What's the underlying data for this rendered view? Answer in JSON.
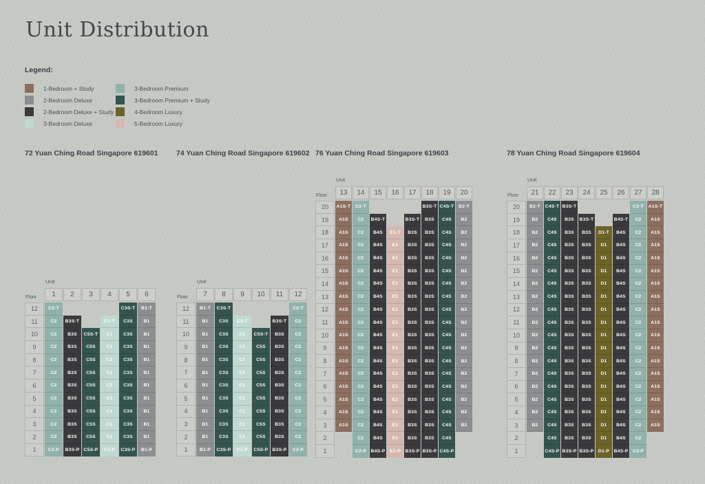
{
  "title": "Unit Distribution",
  "labels": {
    "unit": "Unit",
    "floor": "Floor"
  },
  "legend": {
    "title": "Legend:",
    "items": [
      {
        "label": "1-Bedroom + Study",
        "color": "#8c6f5e"
      },
      {
        "label": "2-Bedroom Deluxe",
        "color": "#8d8e90"
      },
      {
        "label": "2-Bedroom Deluxe + Study",
        "color": "#3a3a3c"
      },
      {
        "label": "3-Bedroom Deluxe",
        "color": "#c0d9d1"
      },
      {
        "label": "3-Bedroom Premium",
        "color": "#90b2aa"
      },
      {
        "label": "3-Bedroom Premium + Study",
        "color": "#34544d"
      },
      {
        "label": "4-Bedroom Luxury",
        "color": "#6b6327"
      },
      {
        "label": "5-Bedroom Luxury",
        "color": "#d5b8b2"
      }
    ]
  },
  "unit_type_colors": {
    "A1S": "#8c6f5e",
    "B1": "#8d8e90",
    "B2": "#8d8e90",
    "B3S": "#3a3a3c",
    "B4S": "#3a3a3c",
    "C1": "#c0d9d1",
    "C2": "#90b2aa",
    "C3S": "#34544d",
    "C4S": "#34544d",
    "C5S": "#34544d",
    "D1": "#6b6327",
    "E1": "#d5b8b2"
  },
  "unit_types": {
    "A1S": "1-Bedroom + Study",
    "B1": "2-Bedroom Deluxe",
    "B2": "2-Bedroom Deluxe",
    "B3S": "2-Bedroom Deluxe + Study",
    "B4S": "2-Bedroom Deluxe + Study",
    "C1": "3-Bedroom Deluxe",
    "C2": "3-Bedroom Premium",
    "C3S": "3-Bedroom Premium + Study",
    "C4S": "3-Bedroom Premium + Study",
    "C5S": "3-Bedroom Premium + Study",
    "D1": "4-Bedroom Luxury",
    "E1": "5-Bedroom Luxury"
  },
  "chart_data": {
    "type": "table",
    "title": "Unit Distribution",
    "buildings": [
      {
        "title": "72 Yuan Ching Road Singapore 619601",
        "units": [
          "1",
          "2",
          "3",
          "4",
          "5",
          "6"
        ],
        "floors": [
          {
            "floor": "12",
            "cells": [
              "C2-T",
              "",
              "",
              "",
              "C3S-T",
              "B1-T"
            ]
          },
          {
            "floor": "11",
            "cells": [
              "C2",
              "B3S-T",
              "",
              "C1-T",
              "C3S",
              "B1"
            ]
          },
          {
            "floor": "10",
            "cells": [
              "C2",
              "B3S",
              "C5S-T",
              "C1",
              "C3S",
              "B1"
            ]
          },
          {
            "floor": "9",
            "cells": [
              "C2",
              "B3S",
              "C5S",
              "C1",
              "C3S",
              "B1"
            ]
          },
          {
            "floor": "8",
            "cells": [
              "C2",
              "B3S",
              "C5S",
              "C1",
              "C3S",
              "B1"
            ]
          },
          {
            "floor": "7",
            "cells": [
              "C2",
              "B3S",
              "C5S",
              "C1",
              "C3S",
              "B1"
            ]
          },
          {
            "floor": "6",
            "cells": [
              "C2",
              "B3S",
              "C5S",
              "C1",
              "C3S",
              "B1"
            ]
          },
          {
            "floor": "5",
            "cells": [
              "C2",
              "B3S",
              "C5S",
              "C1",
              "C3S",
              "B1"
            ]
          },
          {
            "floor": "4",
            "cells": [
              "C2",
              "B3S",
              "C5S",
              "C1",
              "C3S",
              "B1"
            ]
          },
          {
            "floor": "3",
            "cells": [
              "C2",
              "B3S",
              "C5S",
              "C1",
              "C3S",
              "B1"
            ]
          },
          {
            "floor": "2",
            "cells": [
              "C2",
              "B3S",
              "C5S",
              "C1",
              "C3S",
              "B1"
            ]
          },
          {
            "floor": "1",
            "cells": [
              "C2-P",
              "B3S-P",
              "C5S-P",
              "C1-P",
              "C3S-P",
              "B1-P"
            ]
          }
        ]
      },
      {
        "title": "74 Yuan Ching Road Singapore 619602",
        "units": [
          "7",
          "8",
          "9",
          "10",
          "11",
          "12"
        ],
        "floors": [
          {
            "floor": "12",
            "cells": [
              "B1-T",
              "C3S-T",
              "",
              "",
              "",
              "C2-T"
            ]
          },
          {
            "floor": "11",
            "cells": [
              "B1",
              "C3S",
              "C1-T",
              "",
              "B3S-T",
              "C2"
            ]
          },
          {
            "floor": "10",
            "cells": [
              "B1",
              "C3S",
              "C1",
              "C5S-T",
              "B3S",
              "C2"
            ]
          },
          {
            "floor": "9",
            "cells": [
              "B1",
              "C3S",
              "C1",
              "C5S",
              "B3S",
              "C2"
            ]
          },
          {
            "floor": "8",
            "cells": [
              "B1",
              "C3S",
              "C1",
              "C5S",
              "B3S",
              "C2"
            ]
          },
          {
            "floor": "7",
            "cells": [
              "B1",
              "C3S",
              "C1",
              "C5S",
              "B3S",
              "C2"
            ]
          },
          {
            "floor": "6",
            "cells": [
              "B1",
              "C3S",
              "C1",
              "C5S",
              "B3S",
              "C2"
            ]
          },
          {
            "floor": "5",
            "cells": [
              "B1",
              "C3S",
              "C1",
              "C5S",
              "B3S",
              "C2"
            ]
          },
          {
            "floor": "4",
            "cells": [
              "B1",
              "C3S",
              "C1",
              "C5S",
              "B3S",
              "C2"
            ]
          },
          {
            "floor": "3",
            "cells": [
              "B1",
              "C3S",
              "C1",
              "C5S",
              "B3S",
              "C2"
            ]
          },
          {
            "floor": "2",
            "cells": [
              "B1",
              "C3S",
              "C1",
              "C5S",
              "B3S",
              "C2"
            ]
          },
          {
            "floor": "1",
            "cells": [
              "B1-P",
              "C3S-P",
              "C1-P",
              "C5S-P",
              "B3S-P",
              "C2-P"
            ]
          }
        ]
      },
      {
        "title": "76 Yuan Ching Road Singapore 619603",
        "units": [
          "13",
          "14",
          "15",
          "16",
          "17",
          "18",
          "19",
          "20"
        ],
        "floors": [
          {
            "floor": "20",
            "cells": [
              "A1S-T",
              "C2-T",
              "",
              "",
              "",
              "B3S-T",
              "C4S-T",
              "B2-T"
            ]
          },
          {
            "floor": "19",
            "cells": [
              "A1S",
              "C2",
              "B4S-T",
              "",
              "B3S-T",
              "B3S",
              "C4S",
              "B2"
            ]
          },
          {
            "floor": "18",
            "cells": [
              "A1S",
              "C2",
              "B4S",
              "E1-T",
              "B3S",
              "B3S",
              "C4S",
              "B2"
            ]
          },
          {
            "floor": "17",
            "cells": [
              "A1S",
              "C2",
              "B4S",
              "E1",
              "B3S",
              "B3S",
              "C4S",
              "B2"
            ]
          },
          {
            "floor": "16",
            "cells": [
              "A1S",
              "C2",
              "B4S",
              "E1",
              "B3S",
              "B3S",
              "C4S",
              "B2"
            ]
          },
          {
            "floor": "15",
            "cells": [
              "A1S",
              "C2",
              "B4S",
              "E1",
              "B3S",
              "B3S",
              "C4S",
              "B2"
            ]
          },
          {
            "floor": "14",
            "cells": [
              "A1S",
              "C2",
              "B4S",
              "E1",
              "B3S",
              "B3S",
              "C4S",
              "B2"
            ]
          },
          {
            "floor": "13",
            "cells": [
              "A1S",
              "C2",
              "B4S",
              "E1",
              "B3S",
              "B3S",
              "C4S",
              "B2"
            ]
          },
          {
            "floor": "12",
            "cells": [
              "A1S",
              "C2",
              "B4S",
              "E1",
              "B3S",
              "B3S",
              "C4S",
              "B2"
            ]
          },
          {
            "floor": "11",
            "cells": [
              "A1S",
              "C2",
              "B4S",
              "E1",
              "B3S",
              "B3S",
              "C4S",
              "B2"
            ]
          },
          {
            "floor": "10",
            "cells": [
              "A1S",
              "C2",
              "B4S",
              "E1",
              "B3S",
              "B3S",
              "C4S",
              "B2"
            ]
          },
          {
            "floor": "9",
            "cells": [
              "A1S",
              "C2",
              "B4S",
              "E1",
              "B3S",
              "B3S",
              "C4S",
              "B2"
            ]
          },
          {
            "floor": "8",
            "cells": [
              "A1S",
              "C2",
              "B4S",
              "E1",
              "B3S",
              "B3S",
              "C4S",
              "B2"
            ]
          },
          {
            "floor": "7",
            "cells": [
              "A1S",
              "C2",
              "B4S",
              "E1",
              "B3S",
              "B3S",
              "C4S",
              "B2"
            ]
          },
          {
            "floor": "6",
            "cells": [
              "A1S",
              "C2",
              "B4S",
              "E1",
              "B3S",
              "B3S",
              "C4S",
              "B2"
            ]
          },
          {
            "floor": "5",
            "cells": [
              "A1S",
              "C2",
              "B4S",
              "E1",
              "B3S",
              "B3S",
              "C4S",
              "B2"
            ]
          },
          {
            "floor": "4",
            "cells": [
              "A1S",
              "C2",
              "B4S",
              "E1",
              "B3S",
              "B3S",
              "C4S",
              "B2"
            ]
          },
          {
            "floor": "3",
            "cells": [
              "A1S",
              "C2",
              "B4S",
              "E1",
              "B3S",
              "B3S",
              "C4S",
              "B2"
            ]
          },
          {
            "floor": "2",
            "cells": [
              "",
              "C2",
              "B4S",
              "E1",
              "B3S",
              "B3S",
              "C4S",
              ""
            ]
          },
          {
            "floor": "1",
            "cells": [
              "",
              "C2-P",
              "B4S-P",
              "E1-P",
              "B3S-P",
              "B3S-P",
              "C4S-P",
              ""
            ]
          }
        ]
      },
      {
        "title": "78 Yuan Ching Road Singapore 619604",
        "units": [
          "21",
          "22",
          "23",
          "24",
          "25",
          "26",
          "27",
          "28"
        ],
        "floors": [
          {
            "floor": "20",
            "cells": [
              "B2-T",
              "C4S-T",
              "B3S-T",
              "",
              "",
              "",
              "C2-T",
              "A1S-T"
            ]
          },
          {
            "floor": "19",
            "cells": [
              "B2",
              "C4S",
              "B3S",
              "B3S-T",
              "",
              "B4S-T",
              "C2",
              "A1S"
            ]
          },
          {
            "floor": "18",
            "cells": [
              "B2",
              "C4S",
              "B3S",
              "B3S",
              "D1-T",
              "B4S",
              "C2",
              "A1S"
            ]
          },
          {
            "floor": "17",
            "cells": [
              "B2",
              "C4S",
              "B3S",
              "B3S",
              "D1",
              "B4S",
              "C2",
              "A1S"
            ]
          },
          {
            "floor": "16",
            "cells": [
              "B2",
              "C4S",
              "B3S",
              "B3S",
              "D1",
              "B4S",
              "C2",
              "A1S"
            ]
          },
          {
            "floor": "15",
            "cells": [
              "B2",
              "C4S",
              "B3S",
              "B3S",
              "D1",
              "B4S",
              "C2",
              "A1S"
            ]
          },
          {
            "floor": "14",
            "cells": [
              "B2",
              "C4S",
              "B3S",
              "B3S",
              "D1",
              "B4S",
              "C2",
              "A1S"
            ]
          },
          {
            "floor": "13",
            "cells": [
              "B2",
              "C4S",
              "B3S",
              "B3S",
              "D1",
              "B4S",
              "C2",
              "A1S"
            ]
          },
          {
            "floor": "12",
            "cells": [
              "B2",
              "C4S",
              "B3S",
              "B3S",
              "D1",
              "B4S",
              "C2",
              "A1S"
            ]
          },
          {
            "floor": "11",
            "cells": [
              "B2",
              "C4S",
              "B3S",
              "B3S",
              "D1",
              "B4S",
              "C2",
              "A1S"
            ]
          },
          {
            "floor": "10",
            "cells": [
              "B2",
              "C4S",
              "B3S",
              "B3S",
              "D1",
              "B4S",
              "C2",
              "A1S"
            ]
          },
          {
            "floor": "9",
            "cells": [
              "B2",
              "C4S",
              "B3S",
              "B3S",
              "D1",
              "B4S",
              "C2",
              "A1S"
            ]
          },
          {
            "floor": "8",
            "cells": [
              "B2",
              "C4S",
              "B3S",
              "B3S",
              "D1",
              "B4S",
              "C2",
              "A1S"
            ]
          },
          {
            "floor": "7",
            "cells": [
              "B2",
              "C4S",
              "B3S",
              "B3S",
              "D1",
              "B4S",
              "C2",
              "A1S"
            ]
          },
          {
            "floor": "6",
            "cells": [
              "B2",
              "C4S",
              "B3S",
              "B3S",
              "D1",
              "B4S",
              "C2",
              "A1S"
            ]
          },
          {
            "floor": "5",
            "cells": [
              "B2",
              "C4S",
              "B3S",
              "B3S",
              "D1",
              "B4S",
              "C2",
              "A1S"
            ]
          },
          {
            "floor": "4",
            "cells": [
              "B2",
              "C4S",
              "B3S",
              "B3S",
              "D1",
              "B4S",
              "C2",
              "A1S"
            ]
          },
          {
            "floor": "3",
            "cells": [
              "B2",
              "C4S",
              "B3S",
              "B3S",
              "D1",
              "B4S",
              "C2",
              "A1S"
            ]
          },
          {
            "floor": "2",
            "cells": [
              "",
              "C4S",
              "B3S",
              "B3S",
              "D1",
              "B4S",
              "C2",
              ""
            ]
          },
          {
            "floor": "1",
            "cells": [
              "",
              "C4S-P",
              "B3S-P",
              "B3S-P",
              "D1-P",
              "B4S-P",
              "C2-P",
              ""
            ]
          }
        ]
      }
    ]
  }
}
